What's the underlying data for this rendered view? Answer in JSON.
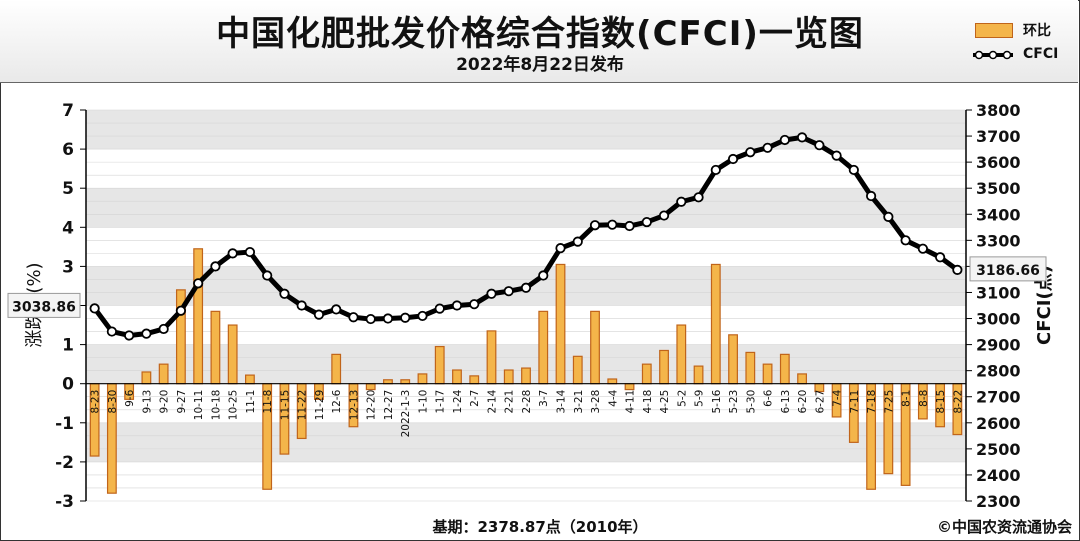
{
  "header": {
    "title": "中国化肥批发价格综合指数(CFCI)一览图",
    "subtitle": "2022年8月22日发布"
  },
  "legend": {
    "bar_label": "环比",
    "line_label": "CFCI"
  },
  "footer": {
    "base": "基期：2378.87点（2010年）",
    "copyright": "©中国农资流通协会"
  },
  "colors": {
    "bar_fill": "#f4b54a",
    "bar_edge": "#c0641a",
    "line": "#000000",
    "grid_band": "#e6e6e6"
  },
  "chart_data": {
    "type": "bar+line",
    "left_axis": {
      "label": "涨跌幅(%)",
      "ylim": [
        -3,
        7
      ],
      "ticks": [
        "-3",
        "-2",
        "-1",
        "0",
        "1",
        "2",
        "3",
        "4",
        "5",
        "6",
        "7"
      ]
    },
    "right_axis": {
      "label": "CFCI(点)",
      "ylim": [
        2300,
        3800
      ],
      "ticks": [
        "2300",
        "2400",
        "2500",
        "2600",
        "2700",
        "2800",
        "2900",
        "3000",
        "3100",
        "3200",
        "3300",
        "3400",
        "3500",
        "3600",
        "3700",
        "3800"
      ]
    },
    "categories": [
      "8-23",
      "8-30",
      "9-6",
      "9-13",
      "9-20",
      "9-27",
      "10-11",
      "10-18",
      "10-25",
      "11-1",
      "11-8",
      "11-15",
      "11-22",
      "11-29",
      "12-6",
      "12-13",
      "12-20",
      "12-27",
      "2022-1-3",
      "1-10",
      "1-17",
      "1-24",
      "2-7",
      "2-14",
      "2-21",
      "2-28",
      "3-7",
      "3-14",
      "3-21",
      "3-28",
      "4-4",
      "4-11",
      "4-18",
      "4-25",
      "5-2",
      "5-9",
      "5-16",
      "5-23",
      "5-30",
      "6-6",
      "6-13",
      "6-20",
      "6-27",
      "7-4",
      "7-11",
      "7-18",
      "7-25",
      "8-1",
      "8-8",
      "8-15",
      "8-22"
    ],
    "series": [
      {
        "name": "环比",
        "type": "bar",
        "axis": "left",
        "values": [
          -1.85,
          -2.8,
          -0.4,
          0.3,
          0.5,
          2.4,
          3.45,
          1.85,
          1.5,
          0.22,
          -2.7,
          -1.8,
          -1.4,
          -0.4,
          0.75,
          -1.1,
          -0.15,
          0.1,
          0.1,
          0.25,
          0.95,
          0.35,
          0.2,
          1.35,
          0.35,
          0.4,
          1.85,
          3.05,
          0.7,
          1.85,
          0.12,
          -0.15,
          0.5,
          0.85,
          1.5,
          0.45,
          3.05,
          1.25,
          0.8,
          0.5,
          0.75,
          0.25,
          -0.2,
          -0.85,
          -1.5,
          -2.7,
          -2.3,
          -2.6,
          -0.9,
          -1.1,
          -1.3
        ]
      },
      {
        "name": "CFCI",
        "type": "line",
        "axis": "right",
        "values": [
          3038.86,
          2950,
          2935,
          2942,
          2960,
          3030,
          3135,
          3200,
          3250,
          3255,
          3165,
          3095,
          3050,
          3015,
          3035,
          3005,
          2998,
          3000,
          3003,
          3010,
          3038,
          3050,
          3055,
          3095,
          3105,
          3118,
          3165,
          3270,
          3295,
          3358,
          3360,
          3355,
          3370,
          3395,
          3448,
          3465,
          3570,
          3612,
          3638,
          3655,
          3685,
          3695,
          3665,
          3625,
          3570,
          3470,
          3390,
          3300,
          3268,
          3235,
          3186.66
        ]
      }
    ],
    "annotations": {
      "first_value": "3038.86",
      "last_value": "3186.66"
    }
  }
}
